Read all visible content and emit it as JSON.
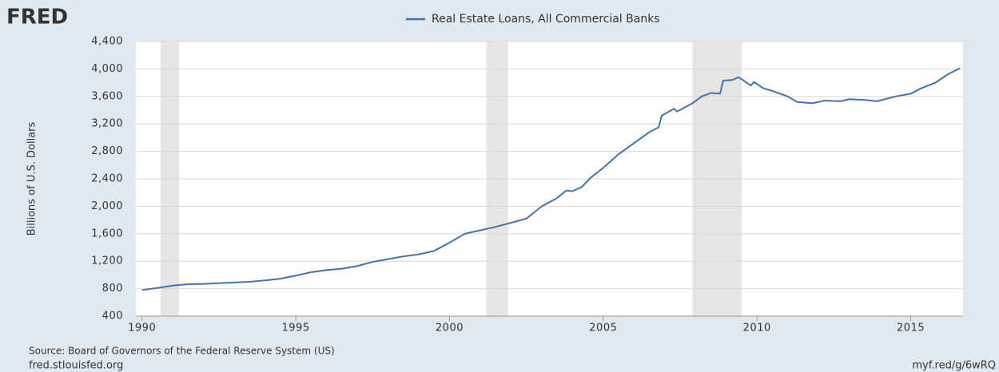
{
  "logo": "FRED",
  "chart_data": {
    "type": "line",
    "ylabel": "Billions of U.S. Dollars",
    "source": "Source: Board of Governors of the Federal Reserve System (US)",
    "site": "fred.stlouisfed.org",
    "short_url": "myf.red/g/6wRQ",
    "xlim": [
      1989.8,
      2016.7
    ],
    "ylim": [
      400,
      4400
    ],
    "xticks": [
      1990,
      1995,
      2000,
      2005,
      2010,
      2015
    ],
    "yticks": [
      {
        "value": 400,
        "label": "400"
      },
      {
        "value": 800,
        "label": "800"
      },
      {
        "value": 1200,
        "label": "1,200"
      },
      {
        "value": 1600,
        "label": "1,600"
      },
      {
        "value": 2000,
        "label": "2,000"
      },
      {
        "value": 2400,
        "label": "2,400"
      },
      {
        "value": 2800,
        "label": "2,800"
      },
      {
        "value": 3200,
        "label": "3,200"
      },
      {
        "value": 3600,
        "label": "3,600"
      },
      {
        "value": 4000,
        "label": "4,000"
      },
      {
        "value": 4400,
        "label": "4,400"
      }
    ],
    "grid": true,
    "recessions": [
      [
        1990.6,
        1991.2
      ],
      [
        2001.2,
        2001.9
      ],
      [
        2007.9,
        2009.5
      ]
    ],
    "x": [
      1990,
      1990.5,
      1991,
      1991.5,
      1992,
      1992.5,
      1993,
      1993.5,
      1994,
      1994.5,
      1995,
      1995.5,
      1996,
      1996.5,
      1997,
      1997.5,
      1998,
      1998.5,
      1999,
      1999.5,
      2000,
      2000.5,
      2001,
      2001.5,
      2002,
      2002.5,
      2003,
      2003.5,
      2003.8,
      2004,
      2004.3,
      2004.6,
      2005,
      2005.5,
      2006,
      2006.5,
      2006.8,
      2006.9,
      2007.3,
      2007.4,
      2007.9,
      2008.2,
      2008.5,
      2008.8,
      2008.9,
      2009.2,
      2009.4,
      2009.8,
      2009.9,
      2010.2,
      2010.5,
      2011,
      2011.3,
      2011.8,
      2012.2,
      2012.7,
      2013,
      2013.5,
      2013.9,
      2014.5,
      2015,
      2015.3,
      2015.8,
      2016.2,
      2016.6
    ],
    "series": [
      {
        "name": "Real Estate Loans, All Commercial Banks",
        "color": "#4572a7",
        "values": [
          780,
          810,
          845,
          865,
          870,
          880,
          890,
          900,
          920,
          945,
          990,
          1040,
          1070,
          1090,
          1130,
          1190,
          1230,
          1270,
          1300,
          1350,
          1470,
          1600,
          1650,
          1700,
          1760,
          1820,
          2000,
          2120,
          2230,
          2220,
          2280,
          2420,
          2560,
          2760,
          2920,
          3080,
          3150,
          3320,
          3420,
          3380,
          3500,
          3600,
          3650,
          3640,
          3830,
          3840,
          3880,
          3760,
          3810,
          3720,
          3680,
          3600,
          3520,
          3500,
          3540,
          3530,
          3560,
          3550,
          3530,
          3600,
          3640,
          3710,
          3800,
          3920,
          4010
        ]
      }
    ]
  }
}
